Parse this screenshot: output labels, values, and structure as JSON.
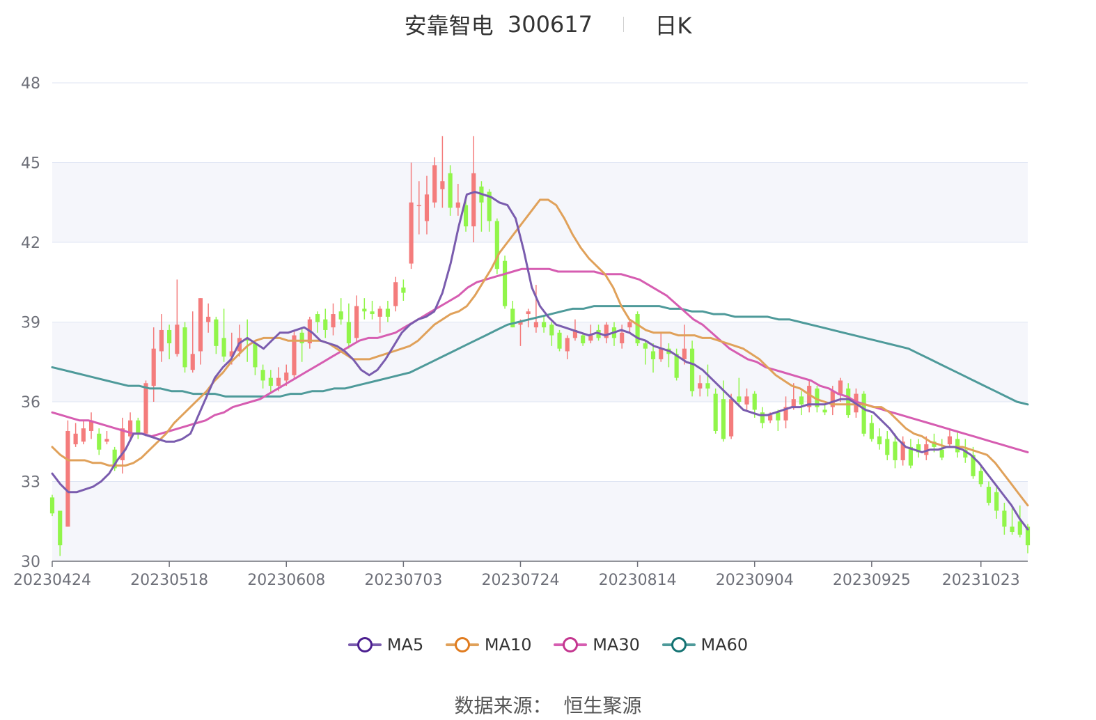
{
  "header": {
    "stock_name": "安靠智电",
    "stock_code": "300617",
    "period": "日K"
  },
  "source": {
    "label": "数据来源：",
    "provider": "恒生聚源"
  },
  "colors": {
    "up": "#f47c7c",
    "down": "#91f54a",
    "grid": "#dfe5f3",
    "band": "#f5f6fb",
    "axis": "#6e7079",
    "ma5": "#7a5cae",
    "ma10": "#e0a15a",
    "ma30": "#d65db1",
    "ma60": "#4e9a9a",
    "ma5_ring": "#4b1e8f",
    "ma10_ring": "#e07b1e",
    "ma30_ring": "#c4368f",
    "ma60_ring": "#137272"
  },
  "legend": [
    {
      "key": "ma5",
      "label": "MA5"
    },
    {
      "key": "ma10",
      "label": "MA10"
    },
    {
      "key": "ma30",
      "label": "MA30"
    },
    {
      "key": "ma60",
      "label": "MA60"
    }
  ],
  "chart_data": {
    "type": "candlestick",
    "y_axis": {
      "min": 30,
      "max": 48,
      "ticks": [
        30,
        33,
        36,
        39,
        42,
        45,
        48
      ]
    },
    "x_labels": [
      {
        "index": 0,
        "label": "20230424"
      },
      {
        "index": 15,
        "label": "20230518"
      },
      {
        "index": 30,
        "label": "20230608"
      },
      {
        "index": 45,
        "label": "20230703"
      },
      {
        "index": 60,
        "label": "20230724"
      },
      {
        "index": 75,
        "label": "20230814"
      },
      {
        "index": 90,
        "label": "20230904"
      },
      {
        "index": 105,
        "label": "20230925"
      },
      {
        "index": 119,
        "label": "20231023"
      }
    ],
    "candles": [
      [
        32.4,
        31.8,
        32.5,
        31.7
      ],
      [
        31.9,
        30.6,
        31.9,
        30.2
      ],
      [
        31.3,
        34.9,
        35.3,
        31.3
      ],
      [
        34.4,
        34.8,
        35.2,
        34.3
      ],
      [
        34.5,
        35.0,
        35.3,
        34.4
      ],
      [
        34.9,
        35.3,
        35.6,
        34.6
      ],
      [
        34.8,
        34.2,
        35.0,
        34.0
      ],
      [
        34.5,
        34.6,
        34.9,
        34.4
      ],
      [
        34.2,
        33.5,
        34.3,
        33.4
      ],
      [
        33.8,
        35.0,
        35.4,
        33.3
      ],
      [
        34.7,
        35.3,
        35.6,
        34.5
      ],
      [
        35.3,
        34.8,
        35.4,
        34.6
      ],
      [
        34.8,
        36.7,
        36.8,
        34.7
      ],
      [
        36.6,
        38.0,
        38.8,
        36.0
      ],
      [
        37.9,
        38.7,
        39.3,
        37.5
      ],
      [
        38.7,
        38.2,
        38.9,
        37.6
      ],
      [
        37.8,
        38.9,
        40.6,
        37.7
      ],
      [
        38.8,
        37.3,
        39.0,
        37.1
      ],
      [
        37.2,
        37.8,
        39.4,
        37.1
      ],
      [
        37.9,
        39.9,
        39.9,
        37.4
      ],
      [
        39.0,
        39.2,
        39.7,
        38.6
      ],
      [
        39.1,
        38.1,
        39.2,
        37.8
      ],
      [
        38.4,
        37.7,
        39.5,
        37.5
      ],
      [
        37.7,
        37.9,
        38.6,
        37.4
      ],
      [
        37.9,
        38.4,
        38.9,
        37.7
      ],
      [
        38.4,
        38.3,
        39.1,
        37.5
      ],
      [
        38.2,
        37.3,
        38.3,
        37.0
      ],
      [
        37.2,
        36.8,
        37.4,
        36.5
      ],
      [
        36.9,
        36.6,
        37.2,
        36.3
      ],
      [
        36.6,
        36.9,
        37.3,
        36.4
      ],
      [
        36.8,
        37.1,
        37.4,
        36.6
      ],
      [
        37.0,
        38.5,
        38.7,
        36.9
      ],
      [
        38.6,
        38.2,
        38.8,
        37.5
      ],
      [
        38.2,
        39.1,
        39.2,
        38.0
      ],
      [
        39.3,
        39.0,
        39.4,
        38.6
      ],
      [
        39.1,
        38.7,
        39.5,
        38.4
      ],
      [
        38.8,
        39.3,
        39.7,
        38.5
      ],
      [
        39.4,
        39.1,
        39.9,
        38.9
      ],
      [
        39.0,
        38.2,
        39.7,
        38.0
      ],
      [
        38.4,
        39.6,
        40.0,
        38.2
      ],
      [
        39.5,
        39.4,
        39.9,
        39.1
      ],
      [
        39.4,
        39.3,
        39.8,
        39.1
      ],
      [
        39.2,
        39.5,
        39.6,
        38.6
      ],
      [
        39.5,
        39.2,
        39.8,
        39.0
      ],
      [
        39.6,
        40.5,
        40.7,
        39.4
      ],
      [
        40.3,
        40.1,
        40.6,
        39.8
      ],
      [
        41.2,
        43.5,
        45.0,
        41.0
      ],
      [
        43.4,
        43.4,
        44.3,
        42.3
      ],
      [
        42.8,
        43.8,
        44.5,
        42.3
      ],
      [
        43.5,
        44.9,
        45.2,
        43.3
      ],
      [
        44.0,
        44.3,
        46.0,
        43.3
      ],
      [
        44.6,
        43.3,
        44.9,
        43.0
      ],
      [
        43.3,
        43.5,
        44.2,
        43.0
      ],
      [
        43.4,
        42.6,
        43.6,
        42.4
      ],
      [
        42.6,
        44.6,
        46.0,
        42.0
      ],
      [
        44.1,
        43.5,
        44.3,
        42.4
      ],
      [
        43.9,
        42.8,
        44.0,
        42.4
      ],
      [
        42.8,
        41.0,
        42.9,
        40.8
      ],
      [
        41.3,
        39.6,
        41.5,
        39.5
      ],
      [
        39.5,
        38.8,
        39.8,
        38.8
      ],
      [
        38.9,
        39.0,
        39.1,
        38.1
      ],
      [
        39.3,
        39.4,
        39.5,
        38.8
      ],
      [
        38.8,
        39.0,
        40.4,
        38.6
      ],
      [
        39.0,
        38.8,
        39.2,
        38.6
      ],
      [
        38.9,
        38.5,
        39.0,
        38.1
      ],
      [
        38.6,
        38.0,
        38.7,
        37.9
      ],
      [
        37.9,
        38.4,
        38.5,
        37.6
      ],
      [
        38.4,
        38.7,
        39.1,
        38.3
      ],
      [
        38.5,
        38.2,
        38.6,
        38.1
      ],
      [
        38.3,
        38.5,
        38.9,
        38.2
      ],
      [
        38.7,
        38.4,
        38.9,
        38.3
      ],
      [
        38.4,
        38.9,
        39.0,
        38.2
      ],
      [
        38.8,
        38.4,
        39.0,
        38.1
      ],
      [
        38.2,
        38.6,
        38.9,
        38.0
      ],
      [
        38.8,
        39.0,
        39.1,
        38.6
      ],
      [
        39.3,
        38.2,
        39.4,
        38.1
      ],
      [
        38.2,
        38.0,
        38.3,
        37.4
      ],
      [
        37.9,
        37.6,
        38.2,
        37.1
      ],
      [
        37.6,
        38.0,
        38.6,
        37.5
      ],
      [
        38.0,
        37.8,
        38.2,
        37.3
      ],
      [
        37.8,
        36.9,
        38.0,
        36.8
      ],
      [
        37.6,
        38.0,
        38.9,
        37.4
      ],
      [
        38.0,
        36.4,
        38.3,
        36.2
      ],
      [
        36.5,
        36.7,
        37.0,
        36.2
      ],
      [
        36.7,
        36.5,
        37.4,
        36.2
      ],
      [
        36.3,
        34.9,
        36.5,
        34.8
      ],
      [
        36.1,
        34.6,
        36.8,
        34.5
      ],
      [
        34.7,
        36.1,
        36.3,
        34.6
      ],
      [
        36.2,
        36.0,
        36.9,
        35.8
      ],
      [
        35.9,
        36.2,
        36.5,
        35.7
      ],
      [
        36.3,
        35.7,
        36.4,
        35.4
      ],
      [
        35.6,
        35.2,
        35.8,
        35.0
      ],
      [
        35.3,
        35.5,
        35.6,
        35.2
      ],
      [
        35.6,
        35.3,
        35.7,
        34.9
      ],
      [
        35.3,
        35.8,
        36.2,
        35.0
      ],
      [
        35.8,
        36.1,
        36.7,
        35.7
      ],
      [
        36.2,
        35.9,
        36.4,
        35.5
      ],
      [
        35.8,
        36.6,
        36.8,
        35.6
      ],
      [
        36.5,
        35.8,
        36.6,
        35.6
      ],
      [
        35.7,
        35.6,
        35.9,
        35.5
      ],
      [
        35.8,
        36.4,
        36.6,
        35.5
      ],
      [
        36.3,
        36.8,
        36.9,
        36.0
      ],
      [
        36.5,
        35.5,
        36.7,
        35.4
      ],
      [
        35.6,
        36.3,
        36.5,
        35.4
      ],
      [
        36.3,
        34.8,
        36.4,
        34.7
      ],
      [
        35.2,
        34.6,
        35.5,
        34.5
      ],
      [
        34.7,
        34.4,
        35.0,
        34.2
      ],
      [
        34.6,
        34.0,
        34.9,
        33.8
      ],
      [
        34.5,
        33.8,
        34.8,
        33.5
      ],
      [
        33.8,
        34.5,
        34.7,
        33.6
      ],
      [
        34.3,
        33.6,
        34.6,
        33.5
      ],
      [
        34.4,
        34.1,
        34.6,
        33.9
      ],
      [
        34.0,
        34.4,
        34.7,
        33.8
      ],
      [
        34.5,
        34.3,
        34.8,
        34.1
      ],
      [
        34.2,
        33.9,
        34.6,
        33.8
      ],
      [
        34.4,
        34.7,
        35.0,
        34.3
      ],
      [
        34.6,
        34.1,
        34.9,
        33.9
      ],
      [
        34.2,
        33.9,
        34.6,
        33.7
      ],
      [
        34.0,
        33.2,
        34.3,
        33.1
      ],
      [
        33.4,
        32.9,
        33.6,
        32.8
      ],
      [
        32.8,
        32.2,
        33.0,
        32.1
      ],
      [
        32.6,
        31.9,
        32.8,
        31.6
      ],
      [
        31.9,
        31.3,
        32.2,
        31.0
      ],
      [
        31.3,
        31.1,
        32.0,
        31.0
      ],
      [
        31.5,
        31.0,
        32.1,
        30.9
      ],
      [
        31.3,
        30.6,
        31.4,
        30.3
      ]
    ],
    "ma5": [
      33.3,
      32.9,
      32.6,
      32.6,
      32.7,
      32.8,
      33.0,
      33.3,
      33.8,
      34.2,
      34.8,
      34.8,
      34.7,
      34.6,
      34.5,
      34.5,
      34.6,
      34.8,
      35.5,
      36.2,
      36.9,
      37.3,
      37.6,
      38.2,
      38.4,
      38.2,
      38.0,
      38.3,
      38.6,
      38.6,
      38.7,
      38.8,
      38.6,
      38.3,
      38.2,
      38.1,
      37.9,
      37.6,
      37.2,
      37.0,
      37.2,
      37.6,
      38.1,
      38.6,
      38.9,
      39.1,
      39.2,
      39.4,
      40.1,
      41.2,
      42.6,
      43.8,
      43.9,
      43.8,
      43.7,
      43.5,
      43.4,
      42.9,
      41.7,
      40.3,
      39.6,
      39.2,
      38.9,
      38.8,
      38.7,
      38.6,
      38.5,
      38.6,
      38.5,
      38.6,
      38.7,
      38.6,
      38.4,
      38.3,
      38.1,
      38.0,
      37.9,
      37.7,
      37.5,
      37.4,
      37.2,
      36.9,
      36.6,
      36.3,
      36.0,
      35.7,
      35.6,
      35.5,
      35.5,
      35.6,
      35.7,
      35.8,
      35.8,
      35.9,
      35.9,
      35.9,
      36.0,
      36.1,
      36.1,
      35.9,
      35.7,
      35.6,
      35.3,
      35.0,
      34.6,
      34.3,
      34.2,
      34.1,
      34.2,
      34.2,
      34.3,
      34.3,
      34.2,
      34.0,
      33.7,
      33.3,
      32.9,
      32.5,
      32.1,
      31.6,
      31.2
    ],
    "ma10": [
      34.3,
      34.0,
      33.8,
      33.8,
      33.8,
      33.7,
      33.7,
      33.6,
      33.6,
      33.6,
      33.7,
      33.9,
      34.2,
      34.5,
      34.8,
      35.2,
      35.5,
      35.8,
      36.1,
      36.4,
      36.8,
      37.1,
      37.5,
      37.8,
      38.1,
      38.3,
      38.4,
      38.4,
      38.4,
      38.3,
      38.3,
      38.3,
      38.3,
      38.3,
      38.2,
      38.0,
      37.8,
      37.6,
      37.6,
      37.6,
      37.7,
      37.8,
      37.9,
      38.0,
      38.1,
      38.3,
      38.6,
      38.9,
      39.1,
      39.3,
      39.4,
      39.6,
      40.0,
      40.5,
      41.0,
      41.6,
      42.0,
      42.4,
      42.8,
      43.2,
      43.6,
      43.6,
      43.4,
      42.9,
      42.3,
      41.8,
      41.4,
      41.1,
      40.8,
      40.3,
      39.6,
      39.1,
      38.9,
      38.7,
      38.6,
      38.6,
      38.6,
      38.5,
      38.5,
      38.5,
      38.4,
      38.4,
      38.3,
      38.2,
      38.1,
      38.0,
      37.8,
      37.6,
      37.3,
      37.0,
      36.8,
      36.6,
      36.5,
      36.3,
      36.1,
      36.0,
      35.9,
      35.9,
      35.9,
      35.9,
      35.9,
      35.8,
      35.8,
      35.6,
      35.3,
      35.0,
      34.8,
      34.7,
      34.5,
      34.4,
      34.3,
      34.3,
      34.3,
      34.2,
      34.1,
      34.0,
      33.7,
      33.3,
      32.9,
      32.5,
      32.1
    ],
    "ma30": [
      35.6,
      35.5,
      35.4,
      35.3,
      35.3,
      35.2,
      35.1,
      35.0,
      34.9,
      34.8,
      34.8,
      34.7,
      34.8,
      34.9,
      35.0,
      35.1,
      35.2,
      35.3,
      35.5,
      35.6,
      35.8,
      35.9,
      36.0,
      36.1,
      36.3,
      36.5,
      36.7,
      36.9,
      37.1,
      37.3,
      37.5,
      37.7,
      37.9,
      38.1,
      38.3,
      38.4,
      38.4,
      38.5,
      38.6,
      38.8,
      39.0,
      39.2,
      39.4,
      39.6,
      39.8,
      40.0,
      40.3,
      40.5,
      40.6,
      40.7,
      40.8,
      40.9,
      41.0,
      41.0,
      41.0,
      41.0,
      40.9,
      40.9,
      40.9,
      40.9,
      40.9,
      40.8,
      40.8,
      40.8,
      40.7,
      40.6,
      40.4,
      40.2,
      40.0,
      39.7,
      39.4,
      39.1,
      38.9,
      38.6,
      38.3,
      38.0,
      37.8,
      37.6,
      37.5,
      37.3,
      37.2,
      37.1,
      37.0,
      36.9,
      36.8,
      36.6,
      36.5,
      36.3,
      36.2,
      36.0,
      35.9,
      35.8,
      35.7,
      35.6,
      35.5,
      35.4,
      35.3,
      35.2,
      35.1,
      35.0,
      34.9,
      34.8,
      34.7,
      34.6,
      34.5,
      34.4,
      34.3,
      34.2,
      34.1
    ],
    "ma60": [
      37.3,
      37.2,
      37.1,
      37.0,
      36.9,
      36.8,
      36.7,
      36.6,
      36.6,
      36.5,
      36.5,
      36.4,
      36.4,
      36.3,
      36.3,
      36.3,
      36.2,
      36.2,
      36.2,
      36.2,
      36.2,
      36.2,
      36.3,
      36.3,
      36.4,
      36.4,
      36.5,
      36.5,
      36.6,
      36.7,
      36.8,
      36.9,
      37.0,
      37.1,
      37.3,
      37.5,
      37.7,
      37.9,
      38.1,
      38.3,
      38.5,
      38.7,
      38.9,
      39.0,
      39.1,
      39.2,
      39.3,
      39.4,
      39.5,
      39.5,
      39.6,
      39.6,
      39.6,
      39.6,
      39.6,
      39.6,
      39.6,
      39.5,
      39.5,
      39.4,
      39.4,
      39.3,
      39.3,
      39.2,
      39.2,
      39.2,
      39.2,
      39.1,
      39.1,
      39.0,
      38.9,
      38.8,
      38.7,
      38.6,
      38.5,
      38.4,
      38.3,
      38.2,
      38.1,
      38.0,
      37.8,
      37.6,
      37.4,
      37.2,
      37.0,
      36.8,
      36.6,
      36.4,
      36.2,
      36.0,
      35.9
    ]
  }
}
